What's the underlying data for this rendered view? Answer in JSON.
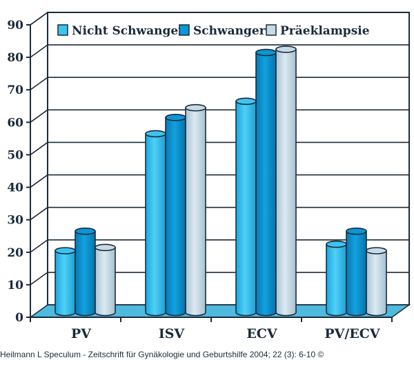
{
  "chart_data": {
    "type": "bar",
    "title": "",
    "xlabel": "",
    "ylabel": "",
    "ylim": [
      0,
      90
    ],
    "yticks": [
      "0",
      "10",
      "20",
      "30",
      "40",
      "50",
      "60",
      "70",
      "80",
      "90"
    ],
    "grid": true,
    "legend_position": "top",
    "categories": [
      "PV",
      "ISV",
      "ECV",
      "PV/ECV"
    ],
    "series": [
      {
        "name": "Nicht Schwanger",
        "values": [
          19,
          55,
          65,
          21
        ],
        "color": "#3cc4f1",
        "dark": "#1a9bd0"
      },
      {
        "name": "Schwanger",
        "values": [
          25,
          60,
          80,
          25
        ],
        "color": "#0b96d6",
        "dark": "#06699c"
      },
      {
        "name": "Präeklampsie",
        "values": [
          20,
          63,
          81,
          19
        ],
        "color": "#c7dbe6",
        "dark": "#98b5c6"
      }
    ]
  },
  "caption": "Heilmann L Speculum - Zeitschrift für Gynäkologie und Geburtshilfe 2004; 22 (3): 6-10 ©"
}
